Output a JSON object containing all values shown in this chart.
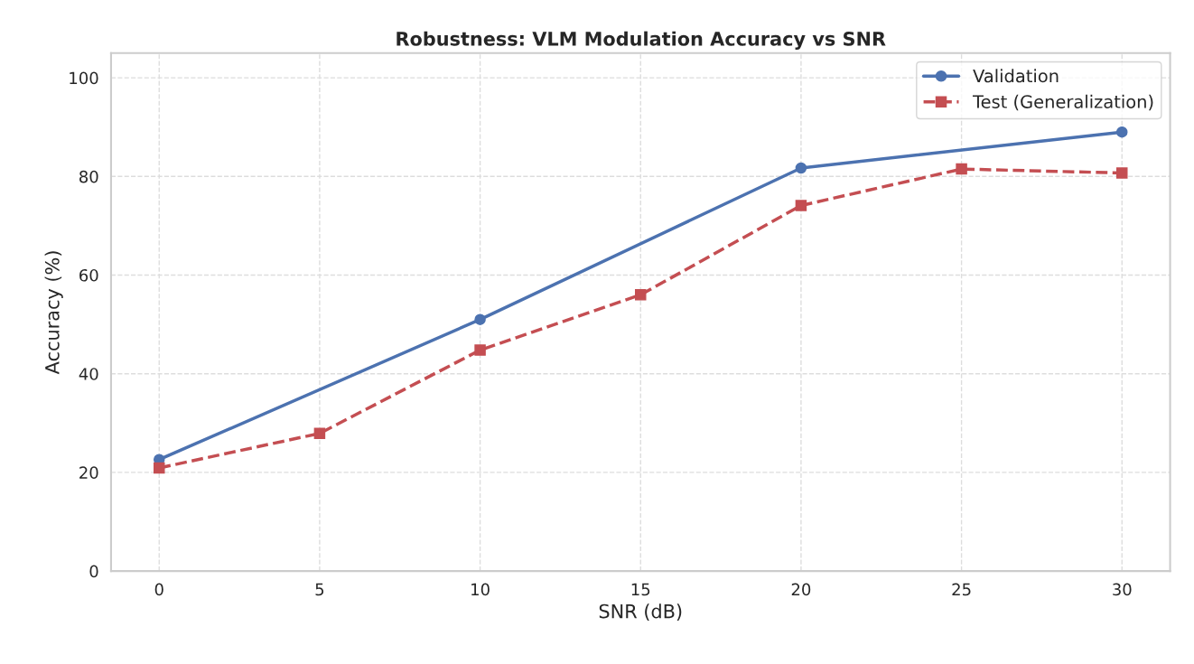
{
  "chart_data": {
    "type": "line",
    "title": "Robustness: VLM Modulation Accuracy vs SNR",
    "xlabel": "SNR (dB)",
    "ylabel": "Accuracy (%)",
    "series": [
      {
        "name": "Validation",
        "color": "#4c72b0",
        "x": [
          0,
          10,
          20,
          30
        ],
        "values": [
          22.6,
          51.0,
          81.7,
          89.0
        ],
        "marker": "circle",
        "line_style": "solid"
      },
      {
        "name": "Test (Generalization)",
        "color": "#c44e52",
        "x": [
          0,
          5,
          10,
          15,
          20,
          25,
          30
        ],
        "values": [
          20.9,
          27.9,
          44.8,
          56.0,
          74.1,
          81.5,
          80.7
        ],
        "marker": "square",
        "line_style": "dashed"
      }
    ],
    "xlim": [
      -1.5,
      31.5
    ],
    "xticks": [
      0,
      5,
      10,
      15,
      20,
      25,
      30
    ],
    "ylim": [
      0,
      105
    ],
    "yticks": [
      0,
      20,
      40,
      60,
      80,
      100
    ],
    "grid": true,
    "legend": "top right"
  }
}
